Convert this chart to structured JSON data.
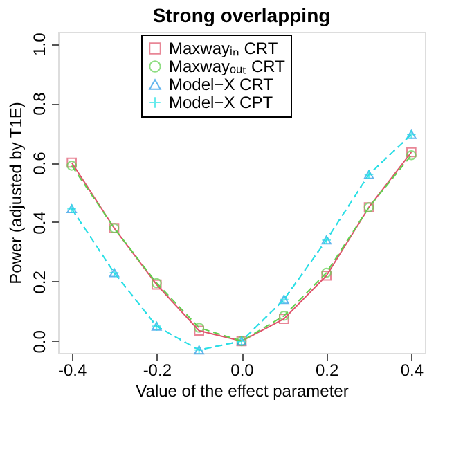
{
  "chart_data": {
    "type": "line",
    "title": "Strong overlapping",
    "xlabel": "Value of the effect parameter",
    "ylabel": "Power (adjusted by T1E)",
    "x": [
      -0.4,
      -0.3,
      -0.2,
      -0.1,
      0.0,
      0.1,
      0.2,
      0.3,
      0.4
    ],
    "series": [
      {
        "name": "Maxwayᵢₙ CRT",
        "color": "#df536b",
        "marker": "square",
        "line_style": "solid",
        "values": [
          0.6,
          0.38,
          0.19,
          0.035,
          0.0,
          0.075,
          0.22,
          0.45,
          0.635
        ]
      },
      {
        "name": "Maxwayₒᵤₜ CRT",
        "color": "#61d04f",
        "marker": "circle",
        "line_style": "dashed",
        "values": [
          0.59,
          0.38,
          0.195,
          0.045,
          0.0,
          0.085,
          0.23,
          0.45,
          0.625
        ]
      },
      {
        "name": "Model−X CRT",
        "color": "#2297e6",
        "marker": "triangle",
        "line_style": "dotted",
        "values": [
          0.445,
          0.23,
          0.05,
          -0.03,
          0.0,
          0.14,
          0.34,
          0.56,
          0.695
        ]
      },
      {
        "name": "Model−X CPT",
        "color": "#28e2e5",
        "marker": "cross",
        "line_style": "dashed",
        "values": [
          0.445,
          0.23,
          0.05,
          -0.03,
          0.0,
          0.14,
          0.34,
          0.56,
          0.695
        ]
      }
    ],
    "xlim": [
      -0.432,
      0.432
    ],
    "xticks": [
      -0.4,
      -0.2,
      {
        "value": 0,
        "label": "0.0"
      },
      0.2,
      0.4
    ],
    "ylim": [
      -0.04,
      1.04
    ],
    "yticks": [
      {
        "value": 0,
        "label": "0.0"
      },
      0.2,
      0.4,
      0.6,
      0.8,
      {
        "value": 1,
        "label": "1.0"
      }
    ],
    "grid": false,
    "legend": "top"
  }
}
